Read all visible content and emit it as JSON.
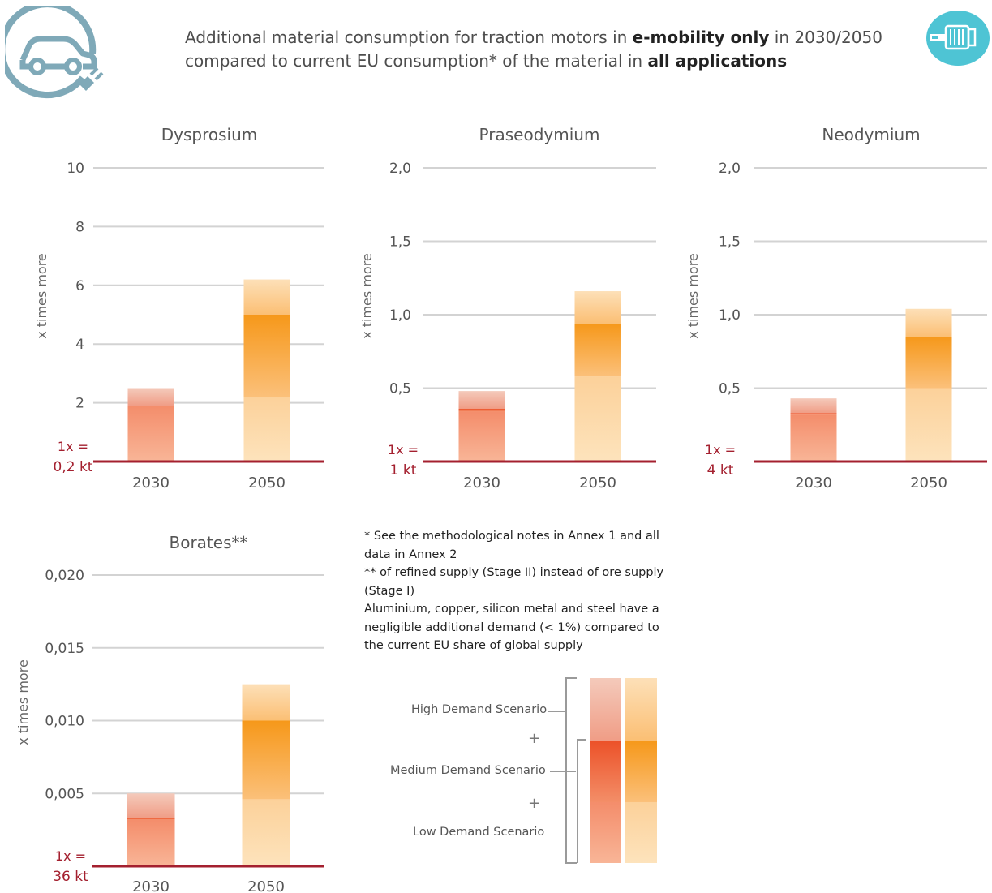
{
  "header": {
    "title_part1": "Additional material consumption for traction motors in ",
    "title_bold1": "e-mobility only",
    "title_part2": " in 2030/2050",
    "title_part3": "compared to current EU consumption* of the material in ",
    "title_bold2": "all applications"
  },
  "icons": {
    "left": "electric-car-plug-icon",
    "right": "electric-motor-icon"
  },
  "colors": {
    "red_high": "#f2c0b0",
    "red_med": "#ee5a32",
    "red_low": "#f7a07f",
    "orange_high": "#fcd7a5",
    "orange_med": "#f8a12c",
    "orange_low": "#fdd9a4",
    "baseline": "#a4202f",
    "grid": "#d3d3d3",
    "baseline_label": "#a4202f"
  },
  "chart_data": [
    {
      "type": "bar",
      "title": "Dysprosium",
      "ylabel": "x times more",
      "categories": [
        "2030",
        "2050"
      ],
      "ylim": [
        0,
        10
      ],
      "yticks": [
        "2",
        "4",
        "6",
        "8",
        "10"
      ],
      "ytick_values": [
        2,
        4,
        6,
        8,
        10
      ],
      "baseline_label": [
        "1x =",
        "0,2 kt"
      ],
      "series": [
        {
          "name": "Low Demand Scenario",
          "values": [
            1.9,
            2.2
          ]
        },
        {
          "name": "Medium Demand Scenario",
          "values": [
            1.9,
            5.0
          ]
        },
        {
          "name": "High Demand Scenario",
          "values": [
            2.5,
            6.2
          ]
        }
      ]
    },
    {
      "type": "bar",
      "title": "Praseodymium",
      "ylabel": "x times more",
      "categories": [
        "2030",
        "2050"
      ],
      "ylim": [
        0,
        2.0
      ],
      "yticks": [
        "0,5",
        "1,0",
        "1,5",
        "2,0"
      ],
      "ytick_values": [
        0.5,
        1.0,
        1.5,
        2.0
      ],
      "baseline_label": [
        "1x =",
        "1 kt"
      ],
      "series": [
        {
          "name": "Low Demand Scenario",
          "values": [
            0.34,
            0.58
          ]
        },
        {
          "name": "Medium Demand Scenario",
          "values": [
            0.36,
            0.94
          ]
        },
        {
          "name": "High Demand Scenario",
          "values": [
            0.48,
            1.16
          ]
        }
      ]
    },
    {
      "type": "bar",
      "title": "Neodymium",
      "ylabel": "x times more",
      "categories": [
        "2030",
        "2050"
      ],
      "ylim": [
        0,
        2.0
      ],
      "yticks": [
        "0,5",
        "1,0",
        "1,5",
        "2,0"
      ],
      "ytick_values": [
        0.5,
        1.0,
        1.5,
        2.0
      ],
      "baseline_label": [
        "1x =",
        "4 kt"
      ],
      "series": [
        {
          "name": "Low Demand Scenario",
          "values": [
            0.32,
            0.5
          ]
        },
        {
          "name": "Medium Demand Scenario",
          "values": [
            0.33,
            0.85
          ]
        },
        {
          "name": "High Demand Scenario",
          "values": [
            0.43,
            1.04
          ]
        }
      ]
    },
    {
      "type": "bar",
      "title": "Borates**",
      "ylabel": "x times more",
      "categories": [
        "2030",
        "2050"
      ],
      "ylim": [
        0,
        0.02
      ],
      "yticks": [
        "0,005",
        "0,010",
        "0,015",
        "0,020"
      ],
      "ytick_values": [
        0.005,
        0.01,
        0.015,
        0.02
      ],
      "baseline_label": [
        "1x =",
        "36 kt"
      ],
      "series": [
        {
          "name": "Low Demand Scenario",
          "values": [
            0.0032,
            0.0046
          ]
        },
        {
          "name": "Medium Demand Scenario",
          "values": [
            0.0033,
            0.01
          ]
        },
        {
          "name": "High Demand Scenario",
          "values": [
            0.005,
            0.0125
          ]
        }
      ]
    }
  ],
  "notes": [
    "* See the methodological notes in Annex 1 and all data in Annex 2",
    "** of refined supply (Stage II) instead of ore supply (Stage I)",
    "Aluminium, copper, silicon metal and steel have a negligible additional demand (< 1%) compared to the current EU share of global supply"
  ],
  "legend": {
    "high": "High Demand Scenario",
    "medium": "Medium Demand Scenario",
    "low": "Low Demand Scenario",
    "plus": "+"
  }
}
